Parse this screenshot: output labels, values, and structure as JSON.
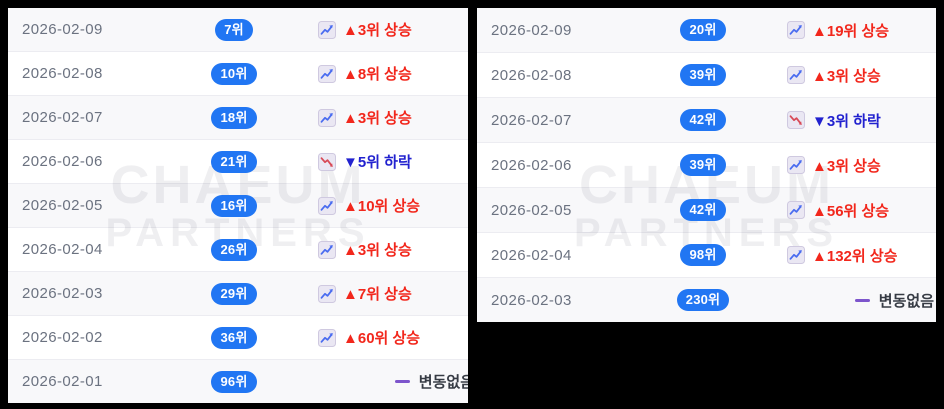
{
  "watermark": {
    "line1": "CHAEUM",
    "line2": "PARTNERS"
  },
  "colors": {
    "background": "#000000",
    "panel": "#ffffff",
    "row_stripe": "#f8f8fa",
    "badge_blue": "#2176f3",
    "rise_red": "#f2271c",
    "fall_blue": "#2222cf",
    "no_change_dash_purple": "#7d55cc",
    "date_gray": "#6b7280"
  },
  "panels": [
    {
      "name": "rank-history-left",
      "rows": [
        {
          "date": "2026-02-09",
          "rank": "7위",
          "change_type": "up",
          "icon": "chart-up-icon",
          "change_text": "▲3위 상승"
        },
        {
          "date": "2026-02-08",
          "rank": "10위",
          "change_type": "up",
          "icon": "chart-up-icon",
          "change_text": "▲8위 상승"
        },
        {
          "date": "2026-02-07",
          "rank": "18위",
          "change_type": "up",
          "icon": "chart-up-icon",
          "change_text": "▲3위 상승"
        },
        {
          "date": "2026-02-06",
          "rank": "21위",
          "change_type": "down",
          "icon": "chart-down-icon",
          "change_text": "▼5위 하락"
        },
        {
          "date": "2026-02-05",
          "rank": "16위",
          "change_type": "up",
          "icon": "chart-up-icon",
          "change_text": "▲10위 상승"
        },
        {
          "date": "2026-02-04",
          "rank": "26위",
          "change_type": "up",
          "icon": "chart-up-icon",
          "change_text": "▲3위 상승"
        },
        {
          "date": "2026-02-03",
          "rank": "29위",
          "change_type": "up",
          "icon": "chart-up-icon",
          "change_text": "▲7위 상승"
        },
        {
          "date": "2026-02-02",
          "rank": "36위",
          "change_type": "up",
          "icon": "chart-up-icon",
          "change_text": "▲60위 상승"
        },
        {
          "date": "2026-02-01",
          "rank": "96위",
          "change_type": "none",
          "icon": "no-change-dash-icon",
          "change_text": "변동없음"
        }
      ]
    },
    {
      "name": "rank-history-right",
      "rows": [
        {
          "date": "2026-02-09",
          "rank": "20위",
          "change_type": "up",
          "icon": "chart-up-icon",
          "change_text": "▲19위 상승"
        },
        {
          "date": "2026-02-08",
          "rank": "39위",
          "change_type": "up",
          "icon": "chart-up-icon",
          "change_text": "▲3위 상승"
        },
        {
          "date": "2026-02-07",
          "rank": "42위",
          "change_type": "down",
          "icon": "chart-down-icon",
          "change_text": "▼3위 하락"
        },
        {
          "date": "2026-02-06",
          "rank": "39위",
          "change_type": "up",
          "icon": "chart-up-icon",
          "change_text": "▲3위 상승"
        },
        {
          "date": "2026-02-05",
          "rank": "42위",
          "change_type": "up",
          "icon": "chart-up-icon",
          "change_text": "▲56위 상승"
        },
        {
          "date": "2026-02-04",
          "rank": "98위",
          "change_type": "up",
          "icon": "chart-up-icon",
          "change_text": "▲132위 상승"
        },
        {
          "date": "2026-02-03",
          "rank": "230위",
          "change_type": "none",
          "icon": "no-change-dash-icon",
          "change_text": "변동없음"
        }
      ]
    }
  ]
}
